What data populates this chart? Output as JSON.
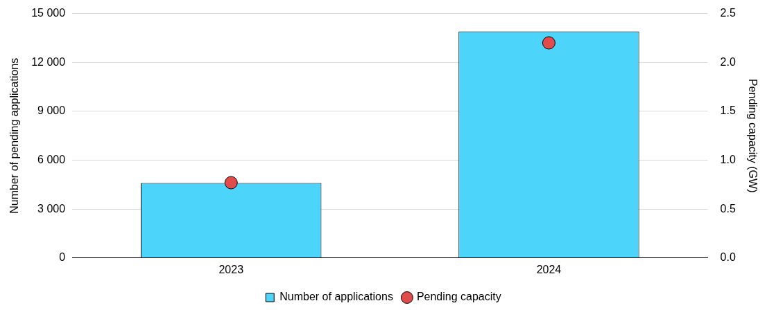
{
  "chart_data": {
    "type": "bar",
    "categories": [
      "2023",
      "2024"
    ],
    "series": [
      {
        "name": "Number of applications",
        "color": "#4dd4fb",
        "values": [
          4600,
          13900
        ]
      },
      {
        "name": "Pending capacity",
        "type": "scatter",
        "axis": "y2",
        "color": "#e04b4b",
        "marker": "circle",
        "values": [
          0.77,
          2.2
        ]
      }
    ],
    "ylabel": "Number of pending applications",
    "y2label": "Pending capacity (GW)",
    "ylim": [
      0,
      15000
    ],
    "yticks": [
      {
        "value": 0,
        "label": "0"
      },
      {
        "value": 3000,
        "label": "3 000"
      },
      {
        "value": 6000,
        "label": "6 000"
      },
      {
        "value": 9000,
        "label": "9 000"
      },
      {
        "value": 12000,
        "label": "12 000"
      },
      {
        "value": 15000,
        "label": "15 000"
      }
    ],
    "y2lim": [
      0,
      2.5
    ],
    "y2ticks": [
      {
        "value": 0,
        "label": "0.0"
      },
      {
        "value": 0.5,
        "label": "0.5"
      },
      {
        "value": 1,
        "label": "1.0"
      },
      {
        "value": 1.5,
        "label": "1.5"
      },
      {
        "value": 2,
        "label": "2.0"
      },
      {
        "value": 2.5,
        "label": "2.5"
      }
    ],
    "grid": "y",
    "legend": "bottom"
  }
}
